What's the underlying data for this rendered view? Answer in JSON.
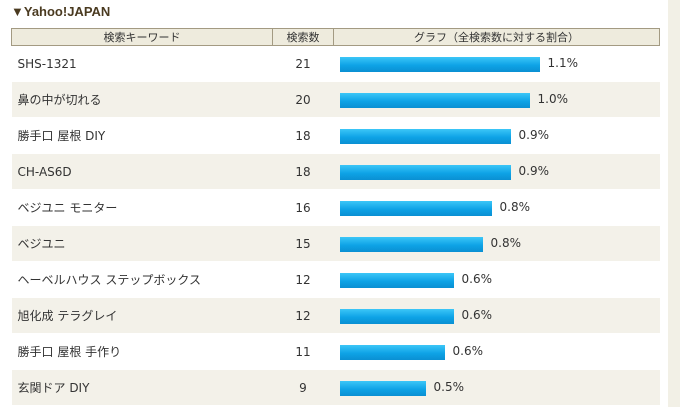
{
  "section": {
    "title": "▼Yahoo!JAPAN"
  },
  "table": {
    "headers": [
      "検索キーワード",
      "検索数",
      "グラフ（全検索数に対する割合）"
    ]
  },
  "chart_data": {
    "type": "bar",
    "title": "",
    "xlabel": "",
    "ylabel": "",
    "categories": [
      "SHS-1321",
      "鼻の中が切れる",
      "勝手口 屋根 DIY",
      "CH-AS6D",
      "ベジユニ モニター",
      "ベジユニ",
      "ヘーベルハウス ステップボックス",
      "旭化成 テラグレイ",
      "勝手口 屋根 手作り",
      "玄関ドア DIY"
    ],
    "counts": [
      21,
      20,
      18,
      18,
      16,
      15,
      12,
      12,
      11,
      9
    ],
    "percent_labels": [
      "1.1%",
      "1.0%",
      "0.9%",
      "0.9%",
      "0.8%",
      "0.8%",
      "0.6%",
      "0.6%",
      "0.6%",
      "0.5%"
    ],
    "bar_color": "#1aa7e8"
  }
}
